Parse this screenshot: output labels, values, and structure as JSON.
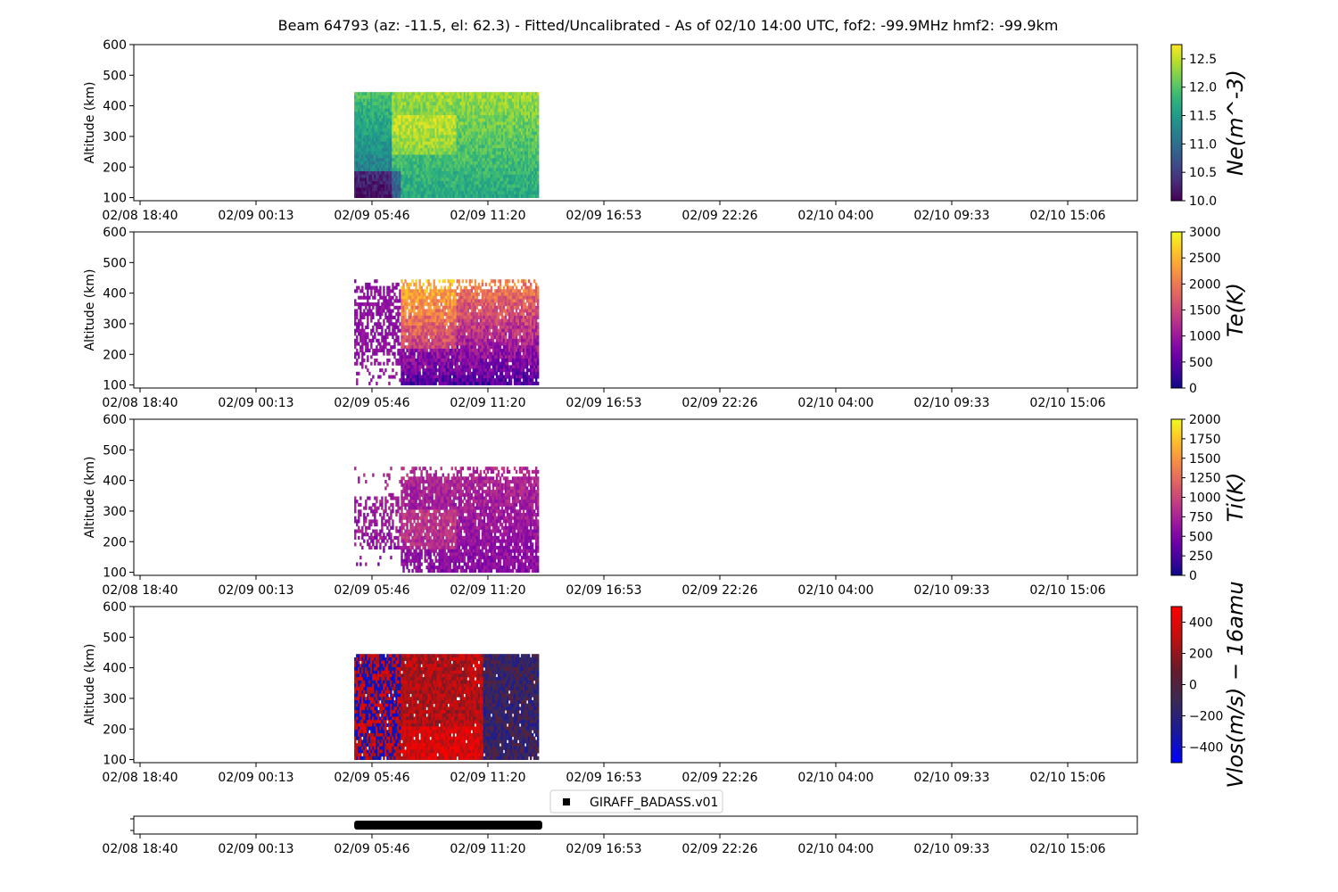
{
  "figure": {
    "title": "Beam 64793 (az: -11.5, el: 62.3) - Fitted/Uncalibrated - As of 02/10 14:00 UTC, fof2: -99.9MHz  hmf2: -99.9km"
  },
  "chart_data": [
    {
      "type": "heatmap",
      "ylabel": "Altitude (km)",
      "ylim": [
        90,
        600
      ],
      "y_ticks": [
        "100",
        "200",
        "300",
        "400",
        "500",
        "600"
      ],
      "x_ticks": [
        "02/08 18:40",
        "02/09 00:13",
        "02/09 05:46",
        "02/09 11:20",
        "02/09 16:53",
        "02/09 22:26",
        "02/10 04:00",
        "02/10 09:33",
        "02/10 15:06"
      ],
      "data_time_range": [
        "02/09 04:55",
        "02/09 13:45"
      ],
      "data_altitude_range_km": [
        100,
        445
      ],
      "colorbar": {
        "label": "Ne(m^-3)",
        "colormap": "viridis",
        "range": [
          10.0,
          12.75
        ],
        "ticks": [
          "10.0",
          "10.5",
          "11.0",
          "11.5",
          "12.0",
          "12.5"
        ]
      }
    },
    {
      "type": "heatmap",
      "ylabel": "Altitude (km)",
      "ylim": [
        90,
        600
      ],
      "y_ticks": [
        "100",
        "200",
        "300",
        "400",
        "500",
        "600"
      ],
      "x_ticks": [
        "02/08 18:40",
        "02/09 00:13",
        "02/09 05:46",
        "02/09 11:20",
        "02/09 16:53",
        "02/09 22:26",
        "02/10 04:00",
        "02/10 09:33",
        "02/10 15:06"
      ],
      "data_time_range": [
        "02/09 04:55",
        "02/09 13:45"
      ],
      "data_altitude_range_km": [
        100,
        445
      ],
      "colorbar": {
        "label": "Te(K)",
        "colormap": "plasma",
        "range": [
          0,
          3000
        ],
        "ticks": [
          "0",
          "500",
          "1000",
          "1500",
          "2000",
          "2500",
          "3000"
        ]
      }
    },
    {
      "type": "heatmap",
      "ylabel": "Altitude (km)",
      "ylim": [
        90,
        600
      ],
      "y_ticks": [
        "100",
        "200",
        "300",
        "400",
        "500",
        "600"
      ],
      "x_ticks": [
        "02/08 18:40",
        "02/09 00:13",
        "02/09 05:46",
        "02/09 11:20",
        "02/09 16:53",
        "02/09 22:26",
        "02/10 04:00",
        "02/10 09:33",
        "02/10 15:06"
      ],
      "data_time_range": [
        "02/09 04:55",
        "02/09 13:45"
      ],
      "data_altitude_range_km": [
        100,
        445
      ],
      "colorbar": {
        "label": "Ti(K)",
        "colormap": "plasma",
        "range": [
          0,
          2000
        ],
        "ticks": [
          "0",
          "250",
          "500",
          "750",
          "1000",
          "1250",
          "1500",
          "1750",
          "2000"
        ]
      }
    },
    {
      "type": "heatmap",
      "ylabel": "Altitude (km)",
      "ylim": [
        90,
        600
      ],
      "y_ticks": [
        "100",
        "200",
        "300",
        "400",
        "500",
        "600"
      ],
      "x_ticks": [
        "02/08 18:40",
        "02/09 00:13",
        "02/09 05:46",
        "02/09 11:20",
        "02/09 16:53",
        "02/09 22:26",
        "02/10 04:00",
        "02/10 09:33",
        "02/10 15:06"
      ],
      "data_time_range": [
        "02/09 04:55",
        "02/09 13:45"
      ],
      "data_altitude_range_km": [
        100,
        445
      ],
      "colorbar": {
        "label": "Vlos(m/s) − 16amu",
        "colormap": "bwr-dark",
        "range": [
          -500,
          500
        ],
        "ticks": [
          "−400",
          "−200",
          "0",
          "200",
          "400"
        ]
      }
    },
    {
      "type": "bar",
      "x_ticks": [
        "02/08 18:40",
        "02/09 00:13",
        "02/09 05:46",
        "02/09 11:20",
        "02/09 16:53",
        "02/09 22:26",
        "02/10 04:00",
        "02/10 09:33",
        "02/10 15:06"
      ],
      "legend": {
        "placement": "top-center",
        "entries": [
          "GIRAFF_BADASS.v01"
        ]
      },
      "series": [
        {
          "name": "GIRAFF_BADASS.v01",
          "x_range": [
            "02/09 04:55",
            "02/09 13:55"
          ]
        }
      ]
    }
  ],
  "colors": {
    "axes": "#000000",
    "background": "#ffffff",
    "timeline_bar": "#000000"
  }
}
